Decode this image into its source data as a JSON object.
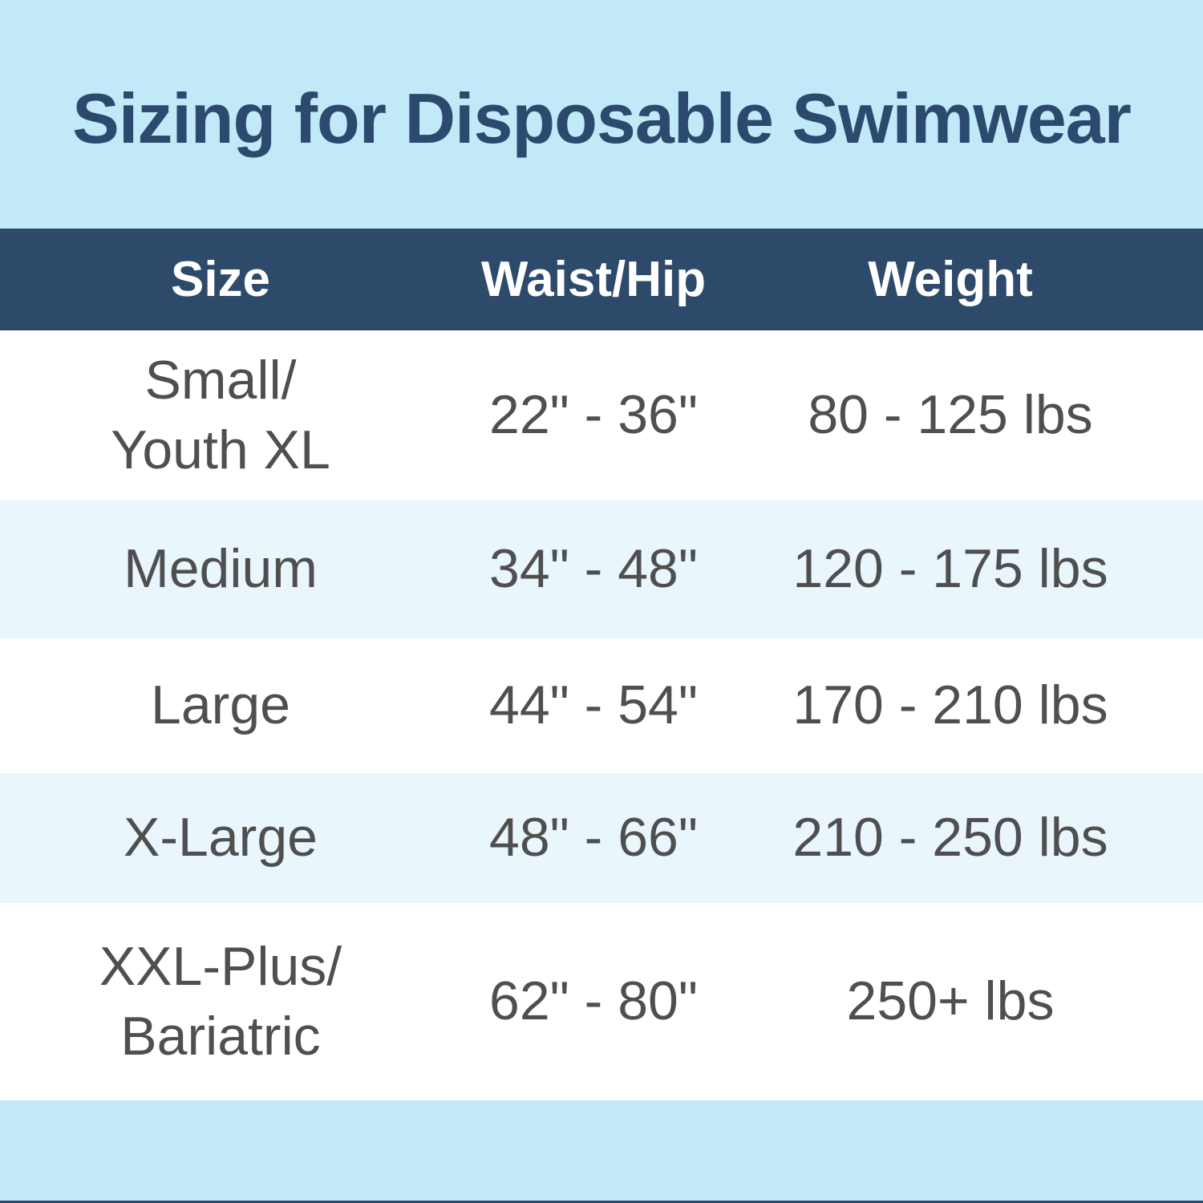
{
  "chart_data": {
    "type": "table",
    "title": "Sizing for Disposable Swimwear",
    "columns": [
      "Size",
      "Waist/Hip",
      "Weight"
    ],
    "rows": [
      {
        "size_lines": [
          "Small/",
          "Youth XL"
        ],
        "waist_hip": "22\" - 36\"",
        "weight": "80 - 125 lbs"
      },
      {
        "size_lines": [
          "Medium"
        ],
        "waist_hip": "34\" - 48\"",
        "weight": "120 - 175 lbs"
      },
      {
        "size_lines": [
          "Large"
        ],
        "waist_hip": "44\" - 54\"",
        "weight": "170 - 210 lbs"
      },
      {
        "size_lines": [
          "X-Large"
        ],
        "waist_hip": "48\" - 66\"",
        "weight": "210 - 250 lbs"
      },
      {
        "size_lines": [
          "XXL-Plus/",
          "Bariatric"
        ],
        "waist_hip": "62\" - 80\"",
        "weight": "250+ lbs"
      }
    ],
    "layout_hints": {
      "row_background_alternation": [
        "white",
        "pale-blue",
        "white",
        "pale-blue",
        "white"
      ],
      "header_position": "top",
      "grid": "off"
    }
  },
  "colors": {
    "background_light_blue": "#c2e9f7",
    "header_navy": "#2e4a6b",
    "title_navy": "#2b4a6e",
    "row_pale_blue": "#e9f6fc",
    "row_white": "#ffffff",
    "body_text_gray": "#4f4f4f",
    "header_text_white": "#ffffff",
    "bottom_edge_line_navy": "#2e4a6b"
  }
}
